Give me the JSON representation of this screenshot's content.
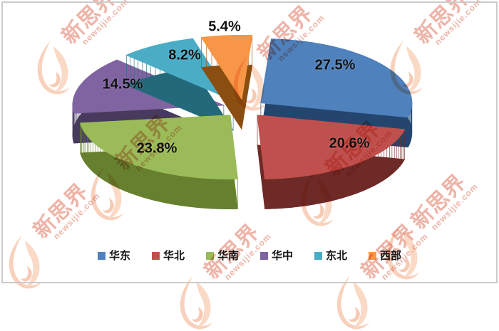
{
  "chart_data": {
    "type": "pie",
    "style": "3d-exploded",
    "title": "",
    "unit": "%",
    "legend_position": "bottom",
    "slices": [
      {
        "name": "华东",
        "value": 27.5,
        "display": "27.5%",
        "color": "#4F81BD",
        "dark": "#24466E"
      },
      {
        "name": "华北",
        "value": 20.6,
        "display": "20.6%",
        "color": "#C0504D",
        "dark": "#6E2A26"
      },
      {
        "name": "华南",
        "value": 23.8,
        "display": "23.8%",
        "color": "#9BBB59",
        "dark": "#66802F"
      },
      {
        "name": "华中",
        "value": 14.5,
        "display": "14.5%",
        "color": "#8064A2",
        "dark": "#473A5C"
      },
      {
        "name": "东北",
        "value": 8.2,
        "display": "8.2%",
        "color": "#4BACC6",
        "dark": "#24697A"
      },
      {
        "name": "西部",
        "value": 5.4,
        "display": "5.4%",
        "color": "#F79646",
        "dark": "#8A4F10"
      }
    ]
  },
  "watermark": {
    "brand": "新思界",
    "domain": "newsijie.com",
    "color": "#dd6a52"
  },
  "frame": {
    "border_color": "#cbcbcb",
    "background": "#ffffff"
  }
}
